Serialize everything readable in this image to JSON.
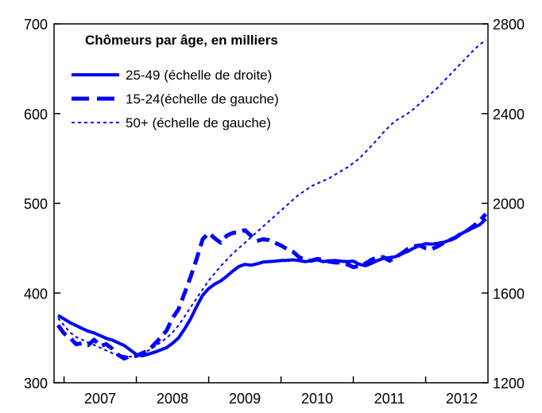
{
  "chart_data": {
    "type": "line",
    "title": "Chômeurs par âge, en milliers",
    "legend_position": "top-left",
    "grid": false,
    "x_categories": [
      "2007",
      "2008",
      "2009",
      "2010",
      "2011",
      "2012"
    ],
    "x": [
      "2006-12",
      "2007-01",
      "2007-02",
      "2007-03",
      "2007-04",
      "2007-05",
      "2007-06",
      "2007-07",
      "2007-08",
      "2007-09",
      "2007-10",
      "2007-11",
      "2007-12",
      "2008-01",
      "2008-02",
      "2008-03",
      "2008-04",
      "2008-05",
      "2008-06",
      "2008-07",
      "2008-08",
      "2008-09",
      "2008-10",
      "2008-11",
      "2008-12",
      "2009-01",
      "2009-02",
      "2009-03",
      "2009-04",
      "2009-05",
      "2009-06",
      "2009-07",
      "2009-08",
      "2009-09",
      "2009-10",
      "2009-11",
      "2009-12",
      "2010-01",
      "2010-02",
      "2010-03",
      "2010-04",
      "2010-05",
      "2010-06",
      "2010-07",
      "2010-08",
      "2010-09",
      "2010-10",
      "2010-11",
      "2010-12",
      "2011-01",
      "2011-02",
      "2011-03",
      "2011-04",
      "2011-05",
      "2011-06",
      "2011-07",
      "2011-08",
      "2011-09",
      "2011-10",
      "2011-11",
      "2011-12",
      "2012-01",
      "2012-02",
      "2012-03",
      "2012-04",
      "2012-05",
      "2012-06",
      "2012-07",
      "2012-08",
      "2012-09",
      "2012-10",
      "2012-11"
    ],
    "y_left": {
      "ylim": [
        300,
        700
      ],
      "ticks": [
        "300",
        "400",
        "500",
        "600",
        "700"
      ]
    },
    "y_right": {
      "ylim": [
        1200,
        2800
      ],
      "ticks": [
        "1200",
        "1600",
        "2000",
        "2400",
        "2800"
      ]
    },
    "series": [
      {
        "name": "25-49 (échelle de droite)",
        "axis": "right",
        "style": "solid",
        "width": 4,
        "color": "#0000ff",
        "values": [
          1500,
          1484,
          1468,
          1455,
          1442,
          1430,
          1422,
          1410,
          1398,
          1390,
          1378,
          1366,
          1346,
          1326,
          1320,
          1328,
          1336,
          1346,
          1356,
          1376,
          1400,
          1440,
          1485,
          1540,
          1590,
          1620,
          1640,
          1654,
          1675,
          1698,
          1718,
          1728,
          1724,
          1730,
          1738,
          1740,
          1742,
          1745,
          1746,
          1748,
          1745,
          1740,
          1744,
          1748,
          1740,
          1744,
          1745,
          1742,
          1740,
          1742,
          1728,
          1722,
          1732,
          1745,
          1755,
          1758,
          1762,
          1775,
          1785,
          1800,
          1812,
          1820,
          1818,
          1822,
          1826,
          1836,
          1848,
          1866,
          1880,
          1892,
          1905,
          1930
        ]
      },
      {
        "name": "15-24(échelle de gauche)",
        "axis": "left",
        "style": "dashed",
        "width": 5,
        "color": "#0000ff",
        "values": [
          364,
          355,
          350,
          343,
          344,
          342,
          348,
          341,
          343,
          338,
          331,
          327,
          330,
          330,
          333,
          336,
          343,
          350,
          358,
          372,
          382,
          400,
          418,
          438,
          460,
          467,
          461,
          456,
          464,
          467,
          468,
          470,
          464,
          458,
          460,
          459,
          456,
          453,
          449,
          446,
          440,
          437,
          436,
          438,
          437,
          435,
          434,
          434,
          432,
          429,
          430,
          433,
          437,
          440,
          440,
          436,
          440,
          444,
          449,
          452,
          453,
          450,
          449,
          452,
          456,
          459,
          462,
          467,
          470,
          475,
          481,
          488
        ]
      },
      {
        "name": "50+ (échelle de gauche)",
        "axis": "left",
        "style": "dotted",
        "width": 2,
        "color": "#0000ff",
        "values": [
          372,
          364,
          356,
          351,
          348,
          345,
          342,
          339,
          336,
          333,
          331,
          330,
          329,
          331,
          333,
          336,
          340,
          345,
          350,
          356,
          364,
          374,
          384,
          394,
          404,
          414,
          422,
          430,
          437,
          444,
          450,
          456,
          462,
          468,
          474,
          480,
          486,
          492,
          498,
          504,
          510,
          514,
          519,
          522,
          525,
          528,
          532,
          536,
          540,
          545,
          550,
          557,
          564,
          571,
          579,
          586,
          592,
          596,
          600,
          605,
          611,
          617,
          623,
          629,
          636,
          643,
          650,
          657,
          664,
          671,
          677,
          682
        ]
      }
    ]
  }
}
